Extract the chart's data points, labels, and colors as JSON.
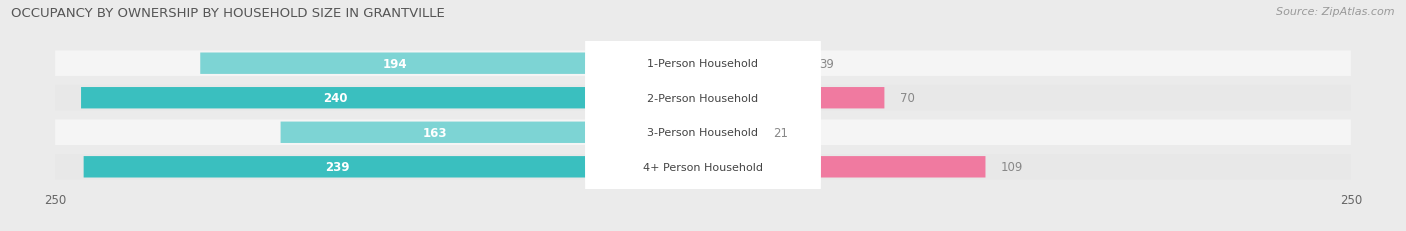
{
  "title": "OCCUPANCY BY OWNERSHIP BY HOUSEHOLD SIZE IN GRANTVILLE",
  "source": "Source: ZipAtlas.com",
  "categories": [
    "1-Person Household",
    "2-Person Household",
    "3-Person Household",
    "4+ Person Household"
  ],
  "owner_values": [
    194,
    240,
    163,
    239
  ],
  "renter_values": [
    39,
    70,
    21,
    109
  ],
  "max_val": 250,
  "owner_color_dark": "#3abfbf",
  "owner_color_light": "#7dd4d4",
  "renter_color_dark": "#f07aa0",
  "renter_color_light": "#f5b8cc",
  "row_bg_light": "#f5f5f5",
  "row_bg_dark": "#e8e8e8",
  "overall_bg": "#ebebeb",
  "label_center_bg": "#ffffff",
  "title_fontsize": 9.5,
  "source_fontsize": 8,
  "bar_label_fontsize": 8.5,
  "cat_label_fontsize": 8,
  "tick_fontsize": 8.5,
  "legend_fontsize": 8.5
}
